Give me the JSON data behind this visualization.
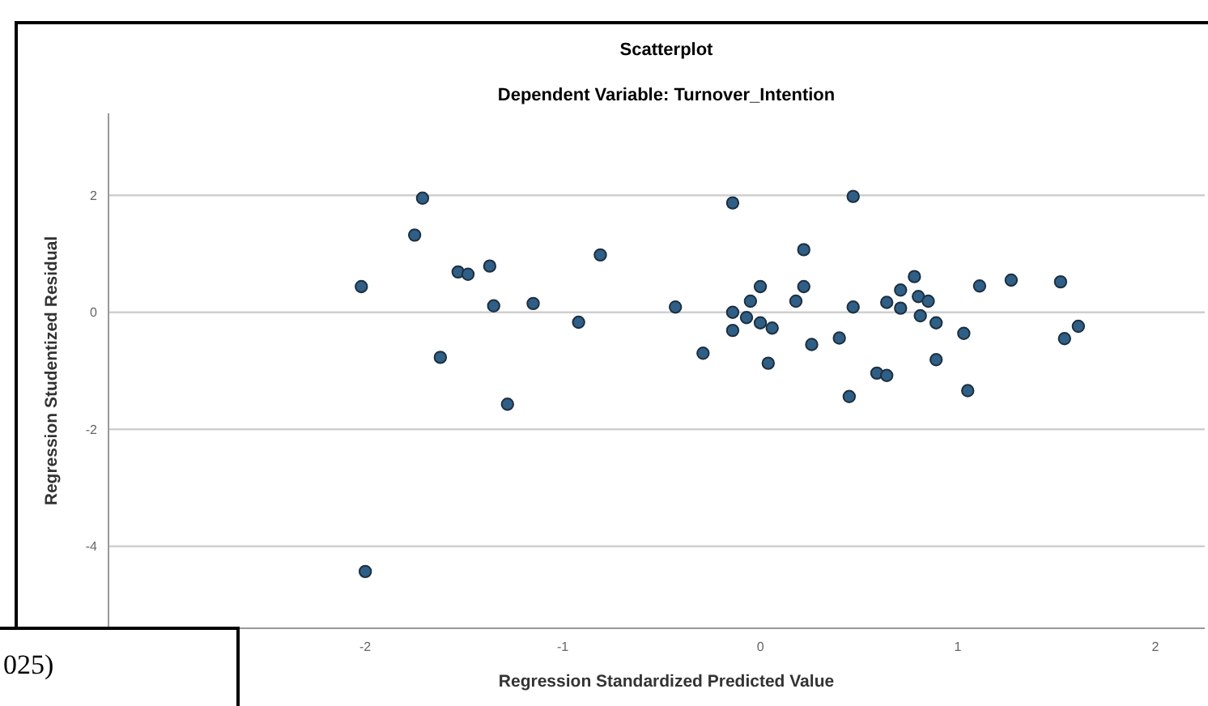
{
  "chart_data": {
    "type": "scatter",
    "title": "Scatterplot",
    "subtitle": "Dependent Variable: Turnover_Intention",
    "xlabel": "Regression Standardized Predicted Value",
    "ylabel": "Regression Studentized Residual",
    "annotations": [
      "025)"
    ],
    "x": [
      -2.02,
      -2.0,
      -1.71,
      -1.75,
      -1.62,
      -1.53,
      -1.48,
      -1.37,
      -1.35,
      -1.28,
      -1.15,
      -0.92,
      -0.81,
      -0.43,
      -0.29,
      -0.14,
      -0.14,
      -0.14,
      -0.07,
      -0.05,
      0.0,
      0.0,
      0.04,
      0.06,
      0.18,
      0.22,
      0.22,
      0.26,
      0.4,
      0.45,
      0.47,
      0.47,
      0.59,
      0.64,
      0.64,
      0.71,
      0.71,
      0.78,
      0.8,
      0.85,
      0.81,
      0.89,
      0.89,
      1.03,
      1.05,
      1.11,
      1.27,
      1.52,
      1.54,
      1.61
    ],
    "values": [
      0.44,
      -4.43,
      1.95,
      1.32,
      -0.77,
      0.69,
      0.65,
      0.79,
      0.11,
      -1.57,
      0.15,
      -0.17,
      0.98,
      0.09,
      -0.7,
      1.87,
      0.0,
      -0.31,
      -0.09,
      0.19,
      0.44,
      -0.18,
      -0.87,
      -0.27,
      0.19,
      1.07,
      0.44,
      -0.55,
      -0.44,
      -1.44,
      1.98,
      0.09,
      -1.04,
      -1.08,
      0.17,
      0.38,
      0.07,
      0.61,
      0.27,
      0.19,
      -0.06,
      -0.18,
      -0.81,
      -0.36,
      -1.34,
      0.45,
      0.55,
      0.52,
      -0.45,
      -0.24
    ],
    "color": "#2f5f86",
    "marker": "circle",
    "grid": "y",
    "xlim": [
      -3.3,
      2.25
    ],
    "ylim": [
      -5.4,
      3.4
    ],
    "xticks": [
      -2,
      -1,
      0,
      1,
      2
    ],
    "yticks": [
      -4,
      -2,
      0,
      2
    ]
  }
}
